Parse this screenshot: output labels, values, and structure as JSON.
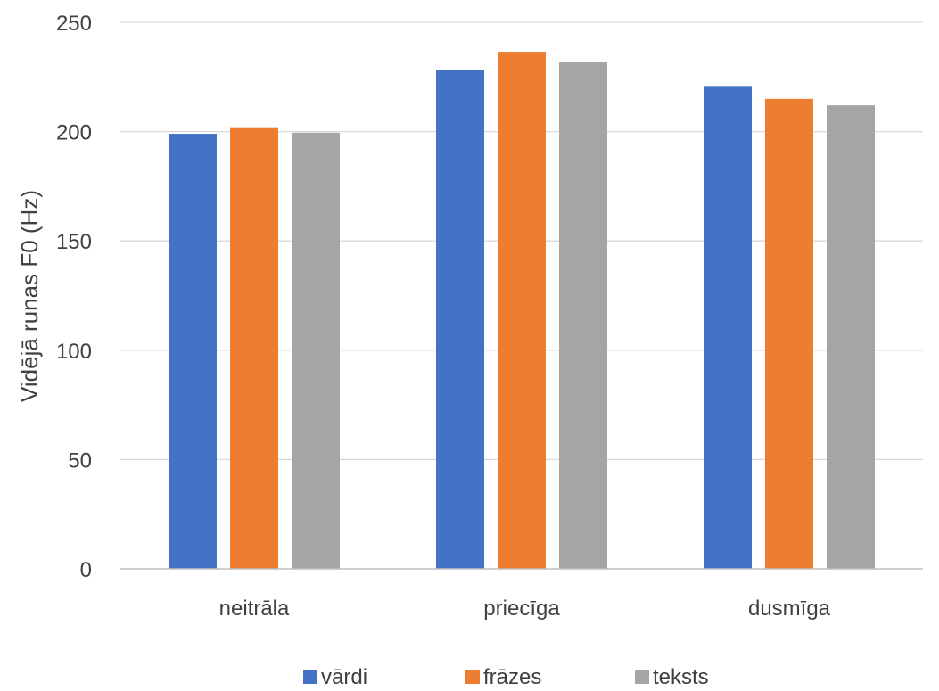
{
  "chart_data": {
    "type": "bar",
    "categories": [
      "neitrāla",
      "priecīga",
      "dusmīga"
    ],
    "series": [
      {
        "name": "vārdi",
        "values": [
          199,
          228,
          220.5
        ],
        "color": "#4472C4"
      },
      {
        "name": "frāzes",
        "values": [
          202,
          236.5,
          215
        ],
        "color": "#ED7D31"
      },
      {
        "name": "teksts",
        "values": [
          199.5,
          232,
          212
        ],
        "color": "#A5A5A5"
      }
    ],
    "ylabel": "Vidējā runas F0 (Hz)",
    "xlabel": "",
    "ylim": [
      0,
      250
    ],
    "yticks": [
      0,
      50,
      100,
      150,
      200,
      250
    ],
    "grid": true,
    "legend": "bottom",
    "gridline_color": "#D9D9D9",
    "axis_color": "#BFBFBF"
  }
}
